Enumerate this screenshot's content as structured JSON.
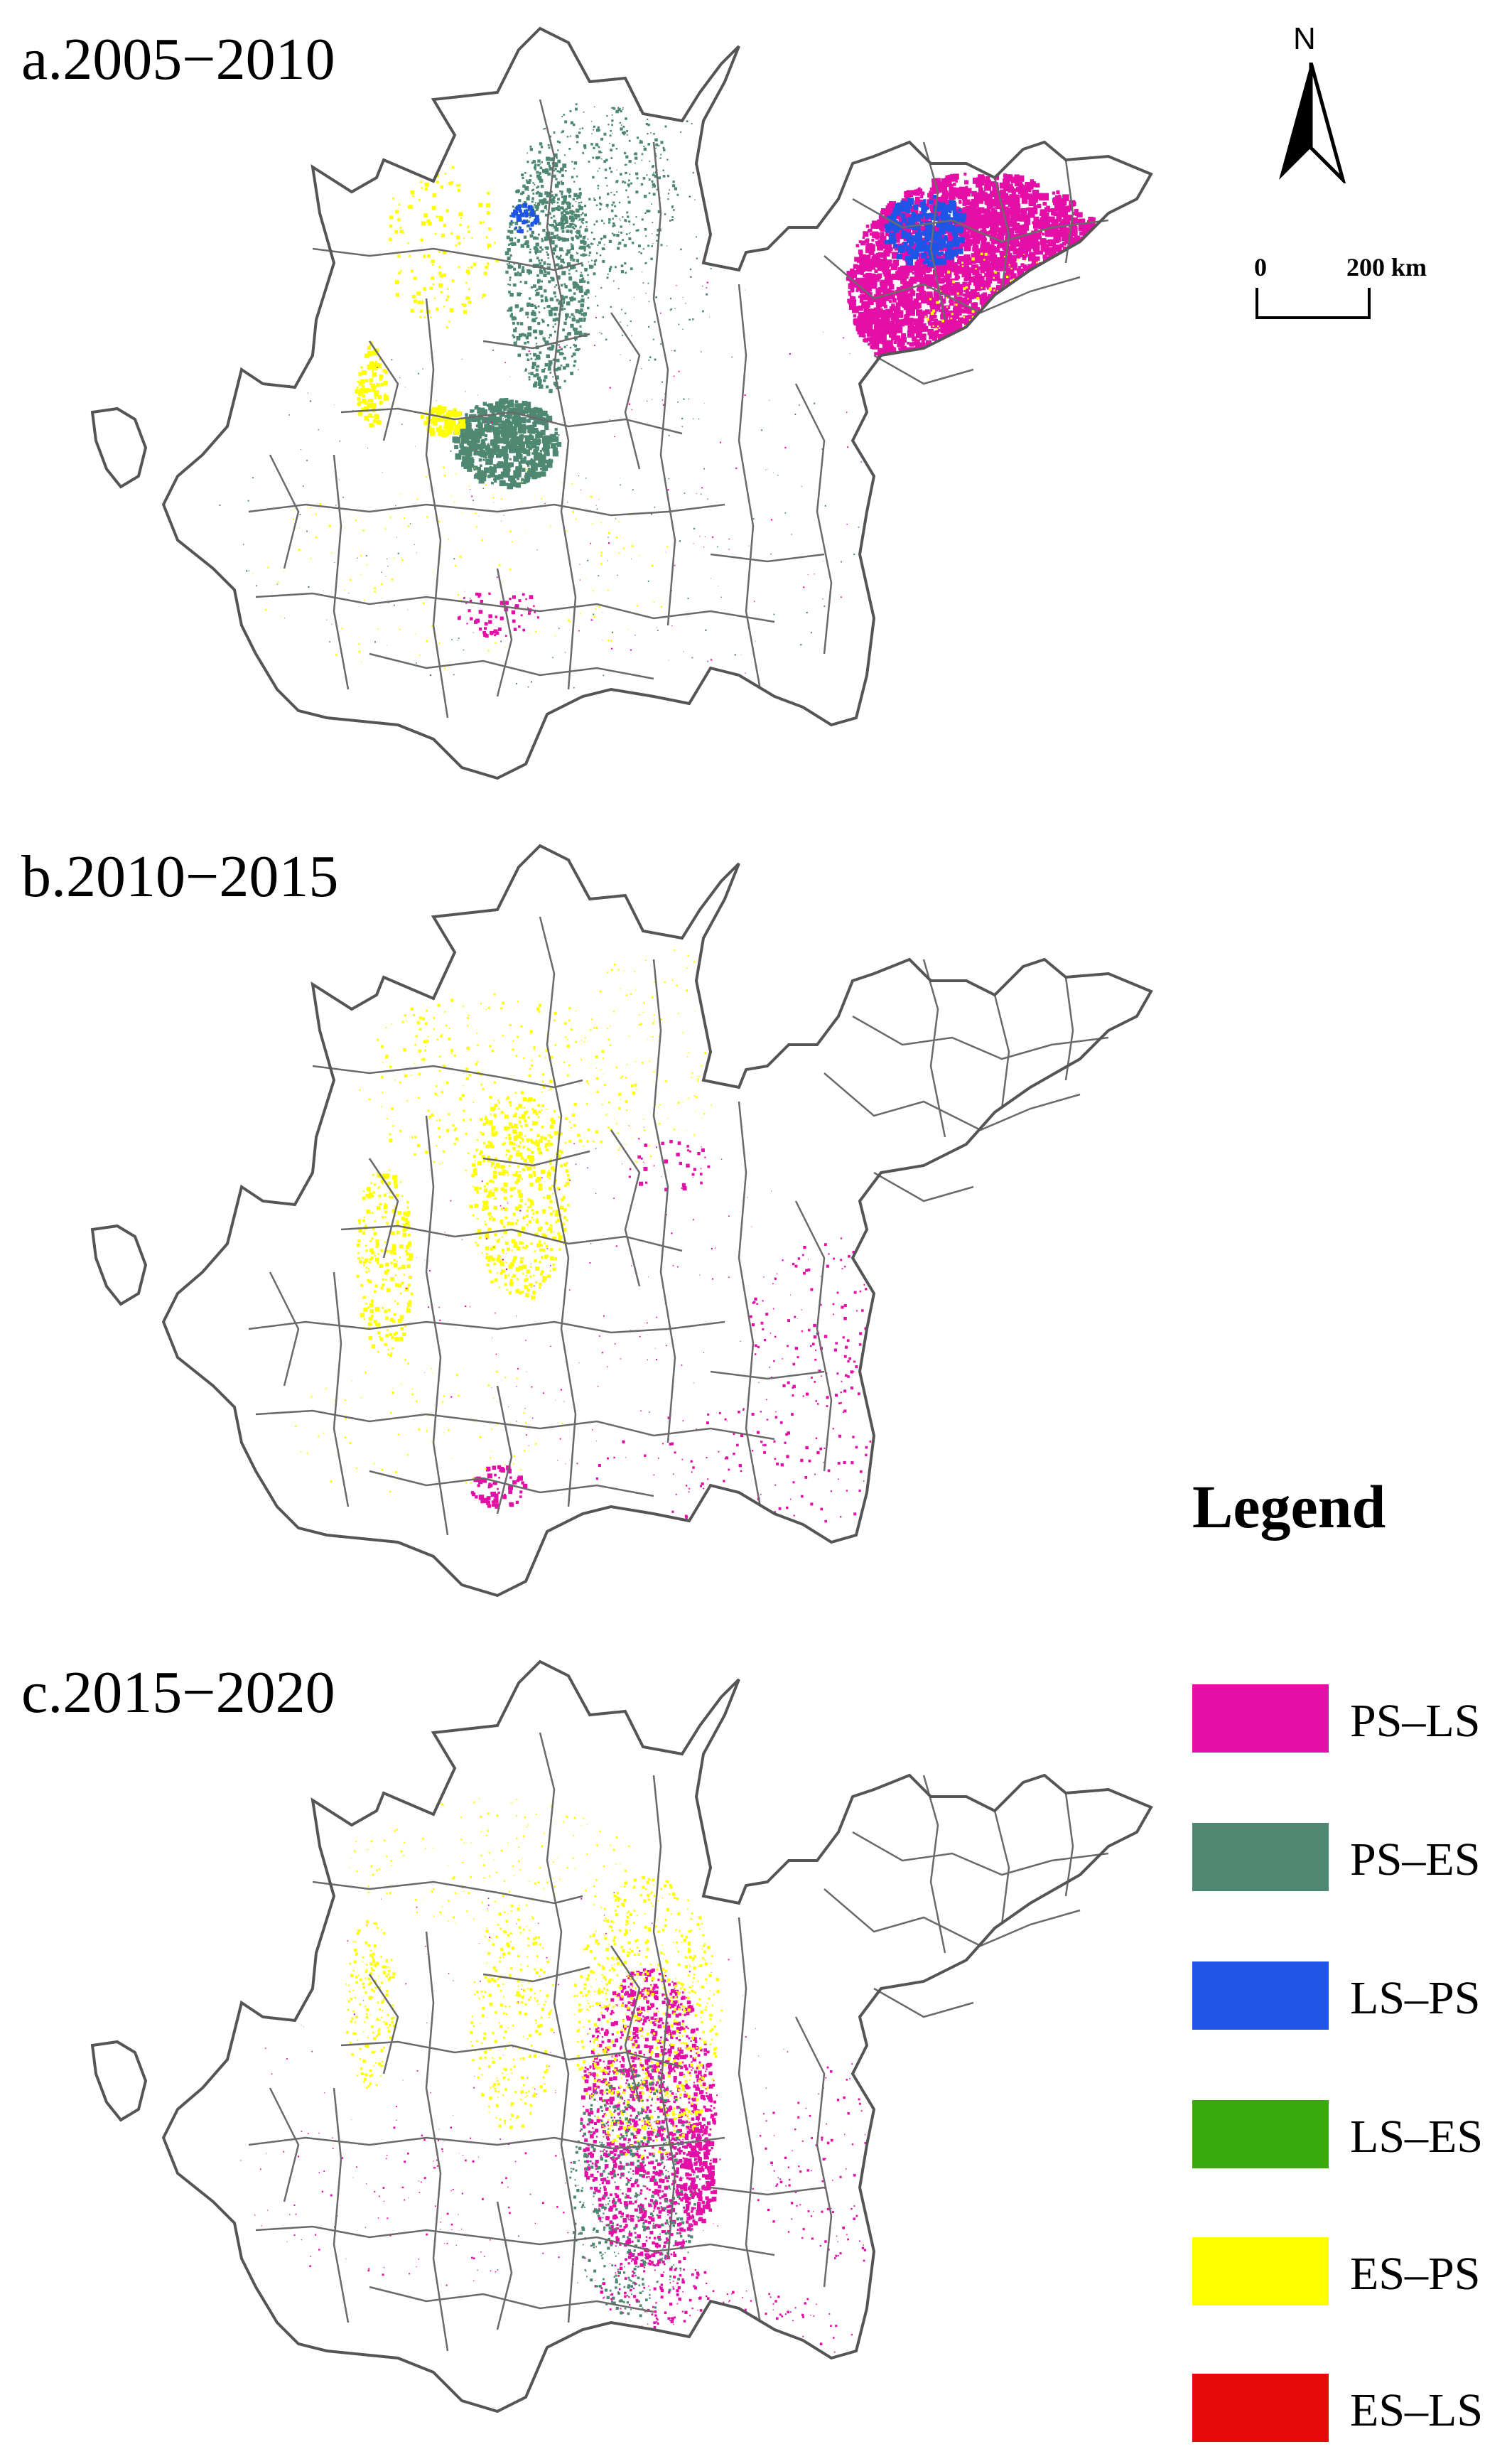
{
  "panels": [
    {
      "id": "a",
      "title": "a.2005−2010"
    },
    {
      "id": "b",
      "title": "b.2010−2015"
    },
    {
      "id": "c",
      "title": "c.2015−2020"
    }
  ],
  "north_arrow": {
    "label": "N"
  },
  "scale_bar": {
    "start_label": "0",
    "end_label": "200 km"
  },
  "legend": {
    "title": "Legend",
    "items": [
      {
        "label": "PS–LS",
        "color": "#e30fa6"
      },
      {
        "label": "PS–ES",
        "color": "#4f8872"
      },
      {
        "label": "LS–PS",
        "color": "#1f55e6"
      },
      {
        "label": "LS–ES",
        "color": "#3aa90c"
      },
      {
        "label": "ES–PS",
        "color": "#ffff00"
      },
      {
        "label": "ES–LS",
        "color": "#e60a0a"
      }
    ]
  }
}
